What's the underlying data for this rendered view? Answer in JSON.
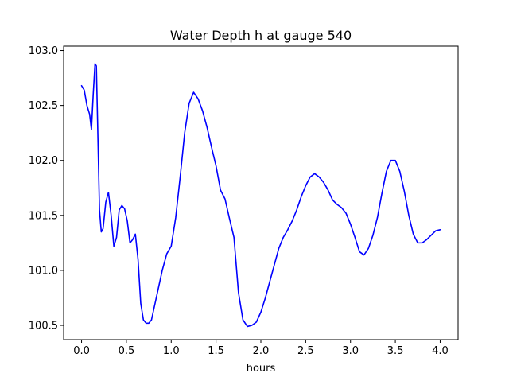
{
  "chart_data": {
    "type": "line",
    "title": "Water Depth h at gauge 540",
    "xlabel": "hours",
    "ylabel": "",
    "xlim": [
      -0.2,
      4.2
    ],
    "ylim": [
      100.37,
      103.04
    ],
    "xticks": [
      0.0,
      0.5,
      1.0,
      1.5,
      2.0,
      2.5,
      3.0,
      3.5,
      4.0
    ],
    "xtick_labels": [
      "0.0",
      "0.5",
      "1.0",
      "1.5",
      "2.0",
      "2.5",
      "3.0",
      "3.5",
      "4.0"
    ],
    "yticks": [
      100.5,
      101.0,
      101.5,
      102.0,
      102.5,
      103.0
    ],
    "ytick_labels": [
      "100.5",
      "101.0",
      "101.5",
      "102.0",
      "102.5",
      "103.0"
    ],
    "grid": false,
    "series": [
      {
        "color": "#0000ff",
        "x": [
          0.0,
          0.03,
          0.06,
          0.09,
          0.11,
          0.13,
          0.15,
          0.165,
          0.18,
          0.2,
          0.22,
          0.24,
          0.27,
          0.3,
          0.33,
          0.36,
          0.39,
          0.42,
          0.45,
          0.48,
          0.51,
          0.54,
          0.57,
          0.6,
          0.63,
          0.66,
          0.69,
          0.72,
          0.75,
          0.78,
          0.82,
          0.86,
          0.9,
          0.95,
          1.0,
          1.05,
          1.1,
          1.15,
          1.2,
          1.25,
          1.3,
          1.35,
          1.4,
          1.45,
          1.5,
          1.55,
          1.6,
          1.65,
          1.7,
          1.75,
          1.8,
          1.85,
          1.9,
          1.95,
          2.0,
          2.05,
          2.1,
          2.15,
          2.2,
          2.25,
          2.3,
          2.35,
          2.4,
          2.45,
          2.5,
          2.55,
          2.6,
          2.65,
          2.7,
          2.75,
          2.8,
          2.85,
          2.9,
          2.95,
          3.0,
          3.05,
          3.1,
          3.15,
          3.2,
          3.25,
          3.3,
          3.35,
          3.4,
          3.45,
          3.5,
          3.55,
          3.6,
          3.65,
          3.7,
          3.75,
          3.8,
          3.85,
          3.9,
          3.95,
          4.0
        ],
        "y": [
          102.68,
          102.64,
          102.5,
          102.42,
          102.28,
          102.6,
          102.88,
          102.86,
          102.3,
          101.55,
          101.35,
          101.38,
          101.62,
          101.71,
          101.5,
          101.22,
          101.3,
          101.55,
          101.59,
          101.56,
          101.45,
          101.25,
          101.28,
          101.33,
          101.1,
          100.7,
          100.55,
          100.52,
          100.52,
          100.55,
          100.7,
          100.85,
          101.0,
          101.15,
          101.22,
          101.48,
          101.85,
          102.25,
          102.52,
          102.62,
          102.56,
          102.45,
          102.3,
          102.12,
          101.95,
          101.73,
          101.65,
          101.47,
          101.3,
          100.8,
          100.55,
          100.49,
          100.5,
          100.53,
          100.62,
          100.75,
          100.9,
          101.05,
          101.2,
          101.3,
          101.37,
          101.45,
          101.55,
          101.67,
          101.77,
          101.85,
          101.88,
          101.85,
          101.8,
          101.73,
          101.64,
          101.6,
          101.57,
          101.52,
          101.42,
          101.3,
          101.17,
          101.14,
          101.2,
          101.32,
          101.48,
          101.7,
          101.9,
          102.0,
          102.0,
          101.9,
          101.72,
          101.5,
          101.33,
          101.25,
          101.25,
          101.28,
          101.32,
          101.36,
          101.37
        ]
      }
    ]
  }
}
